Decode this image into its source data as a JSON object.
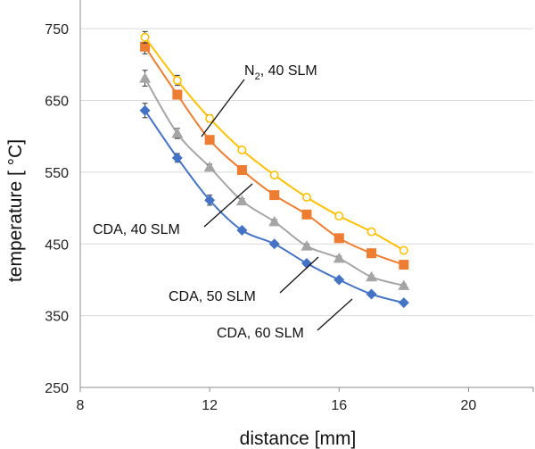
{
  "chart_data": {
    "type": "line",
    "xlabel": "distance [mm]",
    "ylabel": "temperature [ °C]",
    "xlim": [
      8,
      22
    ],
    "ylim": [
      250,
      790
    ],
    "xticks": [
      8,
      12,
      16,
      20
    ],
    "yticks": [
      250,
      350,
      450,
      550,
      650,
      750
    ],
    "grid": "horizontal",
    "x": [
      10,
      11,
      12,
      13,
      14,
      15,
      16,
      17,
      18
    ],
    "series": [
      {
        "name": "N2, 40 SLM",
        "color": "#FFC000",
        "marker": "open-circle",
        "values": [
          738,
          678,
          625,
          581,
          546,
          515,
          489,
          467,
          441
        ],
        "errors": [
          8,
          7,
          5,
          4,
          3,
          3,
          2,
          2,
          2
        ]
      },
      {
        "name": "CDA, 40 SLM",
        "color": "#ED7D31",
        "marker": "square",
        "values": [
          725,
          658,
          595,
          553,
          518,
          491,
          458,
          437,
          421
        ],
        "errors": [
          10,
          6,
          4,
          3,
          3,
          3,
          2,
          2,
          2
        ]
      },
      {
        "name": "CDA, 50 SLM",
        "color": "#A5A5A5",
        "marker": "triangle",
        "values": [
          681,
          604,
          557,
          510,
          481,
          447,
          430,
          404,
          392
        ],
        "errors": [
          11,
          7,
          4,
          3,
          3,
          3,
          3,
          2,
          2
        ]
      },
      {
        "name": "CDA, 60 SLM",
        "color": "#4472C4",
        "marker": "diamond",
        "values": [
          636,
          570,
          511,
          469,
          450,
          423,
          400,
          380,
          368
        ],
        "errors": [
          10,
          6,
          7,
          2,
          2,
          2,
          2,
          2,
          2
        ]
      }
    ],
    "annotations": {
      "n2_prefix": "N",
      "n2_subscript": "2",
      "n2_suffix": ", 40 SLM",
      "cda40": "CDA, 40 SLM",
      "cda50": "CDA, 50 SLM",
      "cda60": "CDA, 60 SLM"
    },
    "colors": {
      "grid": "#d9d9d9",
      "axis": "#8c8c8c",
      "error_bar": "#333333",
      "leader_line": "#111111"
    }
  }
}
